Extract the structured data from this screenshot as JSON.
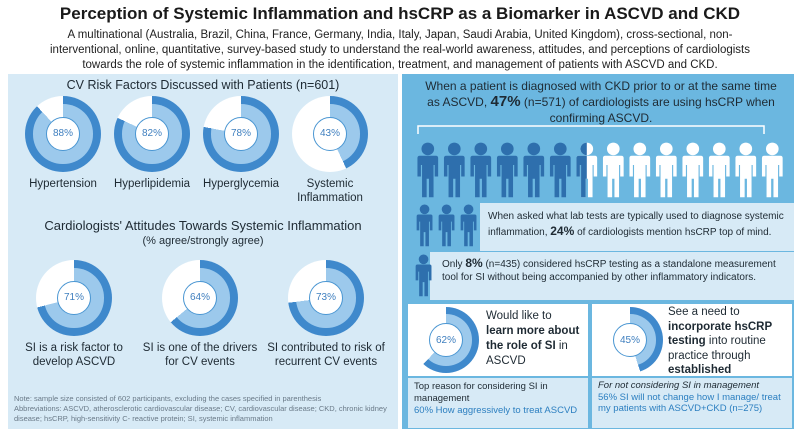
{
  "header": {
    "title": "Perception of Systemic Inflammation and hsCRP as a Biomarker in ASCVD and CKD",
    "subtitle": "A multinational (Australia, Brazil, China, France, Germany, India, Italy, Japan, Saudi Arabia, United Kingdom), cross-sectional, non-interventional, online, quantitative, survey-based study to understand the real-world awareness, attitudes, and perceptions of cardiologists towards the role of systemic inflammation in the identification, treatment, and management of patients with ASCVD and CKD."
  },
  "risk_factors": {
    "heading": "CV Risk Factors Discussed with Patients",
    "n": "(n=601)",
    "items": [
      {
        "label": "Hypertension",
        "pct": "88%",
        "value": 88
      },
      {
        "label": "Hyperlipidemia",
        "pct": "82%",
        "value": 82
      },
      {
        "label": "Hyperglycemia",
        "pct": "78%",
        "value": 78
      },
      {
        "label": "Systemic Inflammation",
        "pct": "43%",
        "value": 43
      }
    ]
  },
  "attitudes": {
    "heading": "Cardiologists' Attitudes Towards Systemic Inflammation",
    "sub": "(% agree/strongly agree)",
    "items": [
      {
        "label": "SI is a risk factor to develop ASCVD",
        "pct": "71%",
        "value": 71
      },
      {
        "label": "SI is one of the drivers for CV events",
        "pct": "64%",
        "value": 64
      },
      {
        "label": "SI contributed to risk of recurrent CV events",
        "pct": "73%",
        "value": 73
      }
    ]
  },
  "note": {
    "line1": "Note: sample size consisted of 602 participants, excluding the cases specified in parenthesis",
    "line2": "Abbreviations: ASCVD, atherosclerotic cardiovascular disease; CV, cardiovascular disease; CKD, chronic kidney disease; hsCRP, high-sensitivity C- reactive protein; SI, systemic inflammation"
  },
  "right": {
    "ckd_pre": "When a patient is diagnosed with CKD prior to or at the same time as ASCVD,",
    "ckd_pct": "47%",
    "ckd_post": "(n=571) of cardiologists are using hsCRP when confirming ASCVD.",
    "people_filled_fraction": 0.47,
    "lab_pre": "When asked what lab tests are typically used to diagnose systemic inflammation,",
    "lab_pct": "24%",
    "lab_post": "of cardiologists mention hsCRP top of mind.",
    "only_pre": "Only",
    "only_pct": "8%",
    "only_post": "(n=435) considered hsCRP testing as a standalone measurement tool for SI without being accompanied by other inflammatory indicators.",
    "learn_pct": "62%",
    "learn_value": 62,
    "learn_l1": "Would like to",
    "learn_l2": "learn more about",
    "learn_l3": "the role of SI",
    "learn_l4": "in ASCVD",
    "incorp_pct": "45%",
    "incorp_value": 45,
    "incorp_l1": "See a need to",
    "incorp_l2": "incorporate hsCRP",
    "incorp_l3": "testing",
    "incorp_l4": "into routine practice through",
    "incorp_l5": "established guidelines",
    "consider_l1": "Top reason for considering SI in management",
    "consider_l2": "60% How aggressively to treat ASCVD",
    "notconsider_l1": "For not considering SI in management",
    "notconsider_l2": "56% SI will not change how I manage/ treat my patients with ASCVD+CKD (n=275)"
  },
  "colors": {
    "ring_dark": "#3f89cc",
    "ring_light": "#9cc9ec",
    "person_dark": "#2e6fad",
    "person_white": "#ffffff"
  }
}
